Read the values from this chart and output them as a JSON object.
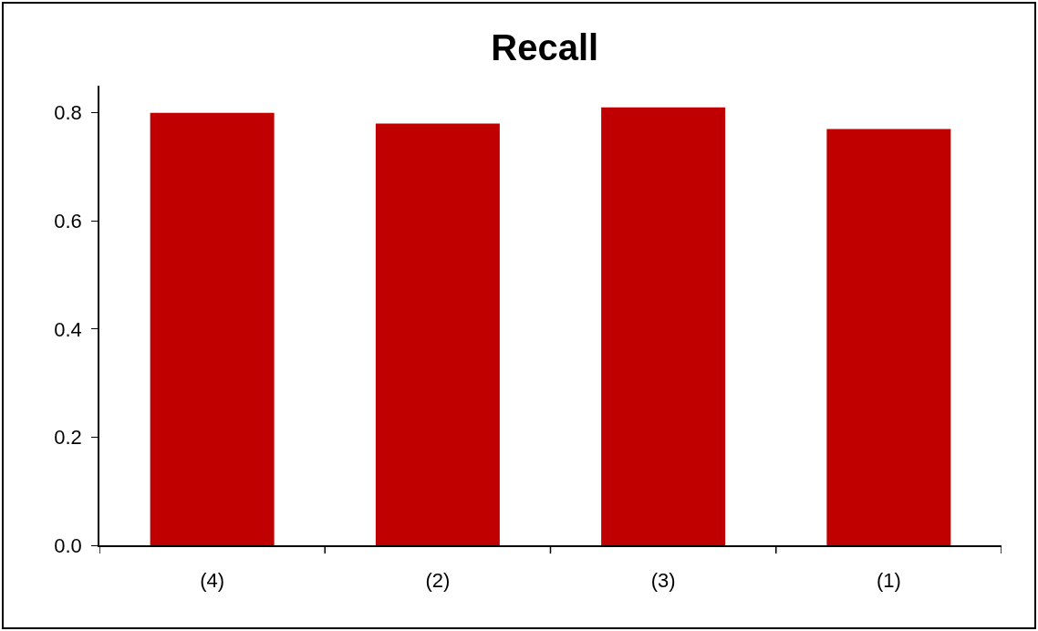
{
  "chart_data": {
    "type": "bar",
    "title": "Recall",
    "categories": [
      "(4)",
      "(2)",
      "(3)",
      "(1)"
    ],
    "values": [
      0.8,
      0.78,
      0.81,
      0.77
    ],
    "color": "#c00000",
    "ylim": [
      0,
      0.85
    ],
    "yticks": [
      {
        "value": 0,
        "label": "0.0"
      },
      0.2,
      0.4,
      0.6,
      0.8
    ],
    "grid": false
  }
}
